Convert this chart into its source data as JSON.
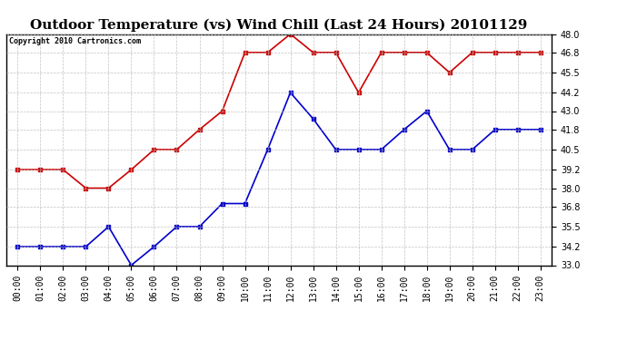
{
  "title": "Outdoor Temperature (vs) Wind Chill (Last 24 Hours) 20101129",
  "copyright": "Copyright 2010 Cartronics.com",
  "x_labels": [
    "00:00",
    "01:00",
    "02:00",
    "03:00",
    "04:00",
    "05:00",
    "06:00",
    "07:00",
    "08:00",
    "09:00",
    "10:00",
    "11:00",
    "12:00",
    "13:00",
    "14:00",
    "15:00",
    "16:00",
    "17:00",
    "18:00",
    "19:00",
    "20:00",
    "21:00",
    "22:00",
    "23:00"
  ],
  "temp_data": [
    39.2,
    39.2,
    39.2,
    38.0,
    38.0,
    39.2,
    40.5,
    40.5,
    41.8,
    43.0,
    46.8,
    46.8,
    48.0,
    46.8,
    46.8,
    44.2,
    46.8,
    46.8,
    46.8,
    45.5,
    46.8,
    46.8,
    46.8,
    46.8
  ],
  "wind_chill_data": [
    34.2,
    34.2,
    34.2,
    34.2,
    35.5,
    33.0,
    34.2,
    35.5,
    35.5,
    37.0,
    37.0,
    40.5,
    44.2,
    42.5,
    40.5,
    40.5,
    40.5,
    41.8,
    43.0,
    40.5,
    40.5,
    41.8,
    41.8,
    41.8
  ],
  "temp_color": "#cc0000",
  "wind_chill_color": "#0000cc",
  "background_color": "#ffffff",
  "plot_bg_color": "#ffffff",
  "grid_color": "#bbbbbb",
  "ylim": [
    33.0,
    48.0
  ],
  "yticks": [
    33.0,
    34.2,
    35.5,
    36.8,
    38.0,
    39.2,
    40.5,
    41.8,
    43.0,
    44.2,
    45.5,
    46.8,
    48.0
  ],
  "title_fontsize": 11,
  "copyright_fontsize": 6,
  "tick_fontsize": 7,
  "marker": "s",
  "markersize": 3,
  "linewidth": 1.2
}
